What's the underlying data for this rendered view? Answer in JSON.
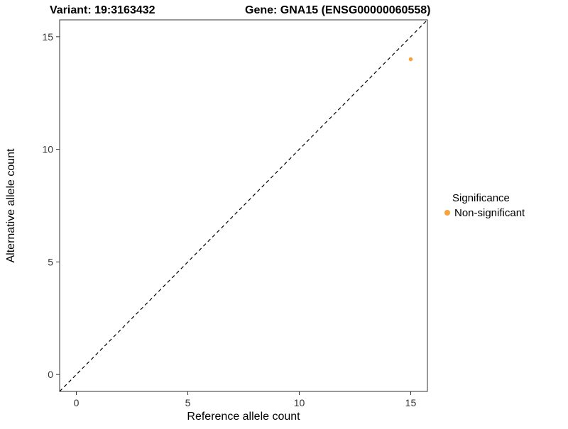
{
  "titles": {
    "variant": "Variant: 19:3163432",
    "gene": "Gene: GNA15 (ENSG00000060558)"
  },
  "chart_data": {
    "type": "scatter",
    "title_left": "Variant: 19:3163432",
    "title_right": "Gene: GNA15 (ENSG00000060558)",
    "xlabel": "Reference allele count",
    "ylabel": "Alternative allele count",
    "xlim": [
      -0.75,
      15.75
    ],
    "ylim": [
      -0.75,
      15.75
    ],
    "xticks": [
      0,
      5,
      10,
      15
    ],
    "yticks": [
      0,
      5,
      10,
      15
    ],
    "grid": false,
    "identity_line": {
      "style": "dashed",
      "color": "#000000"
    },
    "points": [
      {
        "x": 15,
        "y": 14,
        "series": "Non-significant"
      }
    ],
    "legend": {
      "title": "Significance",
      "position": "right",
      "entries": [
        {
          "label": "Non-significant",
          "color": "#F9A23B"
        }
      ]
    },
    "colors": {
      "point": "#F9A23B",
      "panel_border": "#333333",
      "tick": "#333333"
    }
  }
}
